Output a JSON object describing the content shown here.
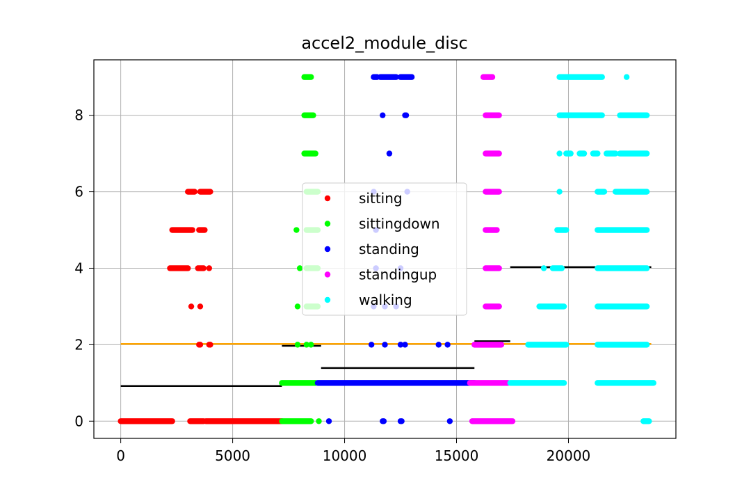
{
  "chart_data": {
    "type": "scatter",
    "title": "accel2_module_disc",
    "xlabel": "",
    "ylabel": "",
    "xlim": [
      -1200,
      24800
    ],
    "ylim": [
      -0.45,
      9.45
    ],
    "xticks": [
      0,
      5000,
      10000,
      15000,
      20000
    ],
    "yticks": [
      0,
      2,
      4,
      6,
      8
    ],
    "grid": true,
    "legend_position": "center",
    "series": [
      {
        "name": "sitting",
        "color": "#ff0000",
        "segments": [
          {
            "y": 0,
            "ranges": [
              [
                0,
                2300
              ],
              [
                3100,
                3700
              ],
              [
                3800,
                7200
              ]
            ]
          },
          {
            "y": 2,
            "points": [
              3500,
              3550,
              3950,
              4000
            ]
          },
          {
            "y": 3,
            "points": [
              3150,
              3550
            ]
          },
          {
            "y": 4,
            "ranges": [
              [
                2200,
                3000
              ],
              [
                3450,
                3700
              ]
            ],
            "points": [
              3950
            ]
          },
          {
            "y": 5,
            "ranges": [
              [
                2300,
                3200
              ],
              [
                3500,
                3750
              ]
            ]
          },
          {
            "y": 6,
            "ranges": [
              [
                3000,
                3300
              ],
              [
                3550,
                4000
              ]
            ]
          }
        ]
      },
      {
        "name": "sittingdown",
        "color": "#00ff00",
        "segments": [
          {
            "y": 0,
            "ranges": [
              [
                7200,
                8500
              ]
            ],
            "points": [
              8850
            ]
          },
          {
            "y": 1,
            "ranges": [
              [
                7200,
                8700
              ]
            ]
          },
          {
            "y": 2,
            "points": [
              7900,
              8300,
              8500
            ]
          },
          {
            "y": 3,
            "points": [
              7900
            ],
            "ranges": [
              [
                8300,
                8800
              ]
            ]
          },
          {
            "y": 4,
            "points": [
              8000
            ],
            "ranges": [
              [
                8300,
                8800
              ]
            ]
          },
          {
            "y": 5,
            "points": [
              7850
            ],
            "ranges": [
              [
                8300,
                8800
              ]
            ]
          },
          {
            "y": 6,
            "ranges": [
              [
                8300,
                8800
              ]
            ]
          },
          {
            "y": 7,
            "ranges": [
              [
                8200,
                8700
              ]
            ]
          },
          {
            "y": 8,
            "ranges": [
              [
                8200,
                8600
              ]
            ]
          },
          {
            "y": 9,
            "ranges": [
              [
                8200,
                8500
              ]
            ]
          }
        ]
      },
      {
        "name": "standing",
        "color": "#0000ff",
        "segments": [
          {
            "y": 0,
            "points": [
              9300,
              11700,
              11750,
              12500,
              12550,
              14700
            ]
          },
          {
            "y": 1,
            "ranges": [
              [
                8800,
                15800
              ]
            ]
          },
          {
            "y": 2,
            "points": [
              11200,
              11800,
              12500,
              12700,
              14200,
              14600
            ]
          },
          {
            "y": 3,
            "points": [
              11300,
              11800,
              12300
            ]
          },
          {
            "y": 4,
            "points": [
              11400,
              12500
            ]
          },
          {
            "y": 5,
            "points": [
              11400
            ]
          },
          {
            "y": 6,
            "points": [
              11300,
              12800
            ]
          },
          {
            "y": 7,
            "points": [
              12000
            ]
          },
          {
            "y": 8,
            "points": [
              11700,
              12700,
              12750
            ]
          },
          {
            "y": 9,
            "ranges": [
              [
                11300,
                11450
              ],
              [
                11600,
                12300
              ],
              [
                12500,
                13000
              ]
            ]
          }
        ]
      },
      {
        "name": "standingup",
        "color": "#ff00ff",
        "segments": [
          {
            "y": 0,
            "ranges": [
              [
                15700,
                17500
              ]
            ]
          },
          {
            "y": 1,
            "ranges": [
              [
                15600,
                17300
              ]
            ]
          },
          {
            "y": 2,
            "ranges": [
              [
                15800,
                17000
              ]
            ]
          },
          {
            "y": 3,
            "ranges": [
              [
                16300,
                16900
              ]
            ]
          },
          {
            "y": 4,
            "ranges": [
              [
                16300,
                16900
              ]
            ]
          },
          {
            "y": 5,
            "ranges": [
              [
                16300,
                16800
              ]
            ]
          },
          {
            "y": 6,
            "ranges": [
              [
                16300,
                16900
              ]
            ]
          },
          {
            "y": 7,
            "ranges": [
              [
                16300,
                16900
              ]
            ]
          },
          {
            "y": 8,
            "ranges": [
              [
                16300,
                16900
              ]
            ]
          },
          {
            "y": 9,
            "ranges": [
              [
                16200,
                16600
              ]
            ]
          }
        ]
      },
      {
        "name": "walking",
        "color": "#00ffff",
        "segments": [
          {
            "y": 0,
            "ranges": [
              [
                23350,
                23600
              ]
            ]
          },
          {
            "y": 1,
            "ranges": [
              [
                17400,
                19800
              ],
              [
                21300,
                23800
              ]
            ]
          },
          {
            "y": 2,
            "ranges": [
              [
                18200,
                19900
              ],
              [
                21300,
                23500
              ]
            ]
          },
          {
            "y": 3,
            "ranges": [
              [
                18700,
                19800
              ],
              [
                21300,
                23500
              ]
            ]
          },
          {
            "y": 4,
            "points": [
              18900
            ],
            "ranges": [
              [
                19300,
                19700
              ],
              [
                21300,
                23500
              ]
            ]
          },
          {
            "y": 5,
            "ranges": [
              [
                19500,
                19900
              ],
              [
                21300,
                23500
              ]
            ]
          },
          {
            "y": 6,
            "points": [
              19600
            ],
            "ranges": [
              [
                21300,
                21600
              ],
              [
                22100,
                23500
              ]
            ]
          },
          {
            "y": 7,
            "points": [
              19600
            ],
            "ranges": [
              [
                19900,
                20100
              ],
              [
                20500,
                20700
              ],
              [
                21100,
                21300
              ],
              [
                21700,
                22100
              ],
              [
                22300,
                23500
              ]
            ]
          },
          {
            "y": 8,
            "ranges": [
              [
                19600,
                21500
              ],
              [
                22300,
                23500
              ]
            ]
          },
          {
            "y": 9,
            "ranges": [
              [
                19600,
                21500
              ]
            ],
            "points": [
              22600
            ]
          }
        ]
      }
    ],
    "lines": [
      {
        "color": "#ffa500",
        "x": [
          0,
          23700
        ],
        "y": [
          2.02,
          2.02
        ]
      },
      {
        "color": "#000000",
        "x": [
          0,
          7200
        ],
        "y": [
          0.92,
          0.92
        ]
      },
      {
        "color": "#000000",
        "x": [
          7200,
          8950
        ],
        "y": [
          1.97,
          1.97
        ]
      },
      {
        "color": "#000000",
        "x": [
          8950,
          15800
        ],
        "y": [
          1.39,
          1.39
        ]
      },
      {
        "color": "#000000",
        "x": [
          15800,
          17400
        ],
        "y": [
          2.09,
          2.09
        ]
      },
      {
        "color": "#000000",
        "x": [
          17400,
          23700
        ],
        "y": [
          4.03,
          4.03
        ]
      }
    ]
  }
}
